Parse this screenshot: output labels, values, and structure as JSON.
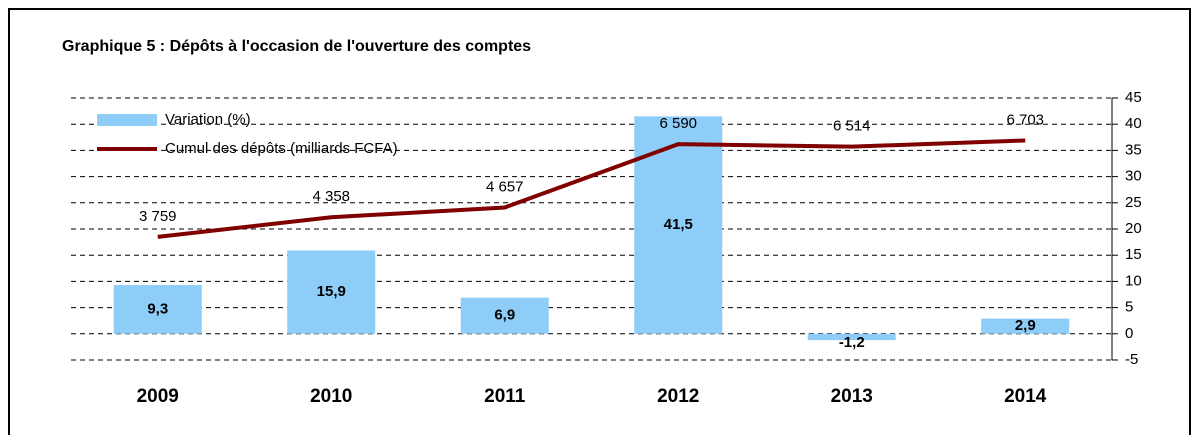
{
  "chart_data": {
    "type": "bar_line",
    "title": "Graphique 5 : Dépôts à l'occasion de l'ouverture des comptes",
    "categories": [
      "2009",
      "2010",
      "2011",
      "2012",
      "2013",
      "2014"
    ],
    "series": [
      {
        "name": "Variation (%)",
        "type": "bar",
        "color": "#8ecdf8",
        "values": [
          9.3,
          15.9,
          6.9,
          41.5,
          -1.2,
          2.9
        ],
        "value_labels": [
          "9,3",
          "15,9",
          "6,9",
          "41,5",
          "-1,2",
          "2,9"
        ]
      },
      {
        "name": "Cumul des dépôts (milliards FCFA)",
        "type": "line",
        "axis": "y2",
        "color": "#800000",
        "values": [
          3759,
          4358,
          4657,
          6590,
          6514,
          6703
        ],
        "value_labels": [
          "3 759",
          "4 358",
          "4 657",
          "6 590",
          "6 514",
          "6 703"
        ]
      }
    ],
    "ylim": [
      -5,
      45
    ],
    "yticks": [
      -5,
      0,
      5,
      10,
      15,
      20,
      25,
      30,
      35,
      40,
      45
    ],
    "y2lim": [
      0,
      8000
    ],
    "grid": true,
    "legend": "upper left"
  }
}
